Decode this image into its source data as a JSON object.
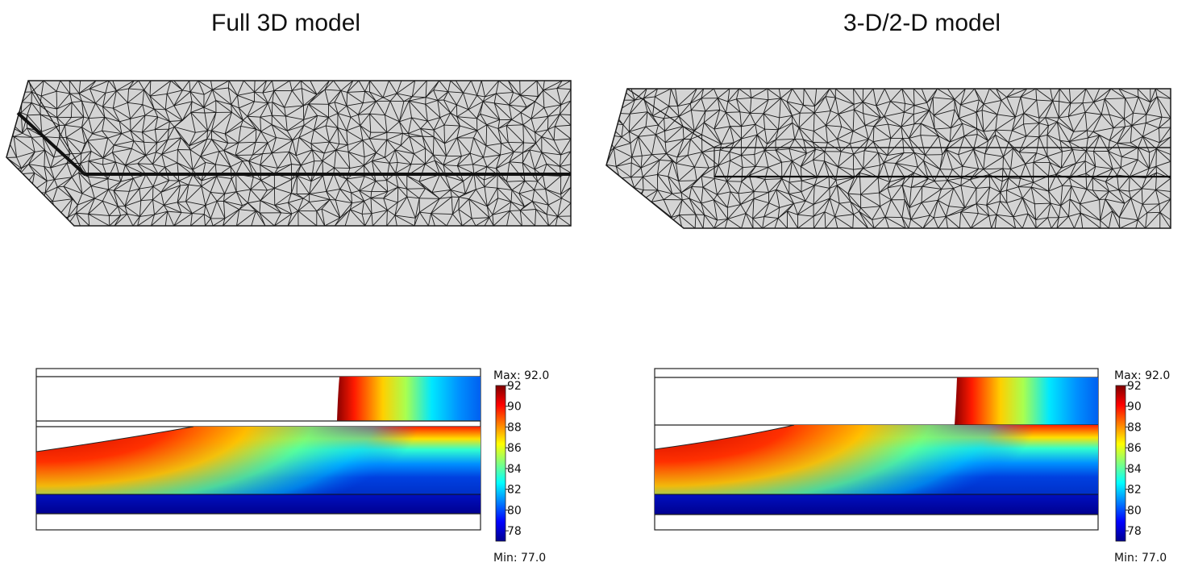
{
  "panels": [
    {
      "title": "Full 3D model"
    },
    {
      "title": "3-D/2-D model"
    }
  ],
  "colorbar": {
    "max_label": "Max: 92.0",
    "min_label": "Min: 77.0",
    "max": 92.0,
    "min": 77.0,
    "ticks": [
      "92",
      "90",
      "88",
      "86",
      "84",
      "82",
      "80",
      "78"
    ],
    "colormap": "jet"
  },
  "colors": {
    "mesh_fill": "#d4d4d4",
    "mesh_line": "#1a1a1a"
  }
}
